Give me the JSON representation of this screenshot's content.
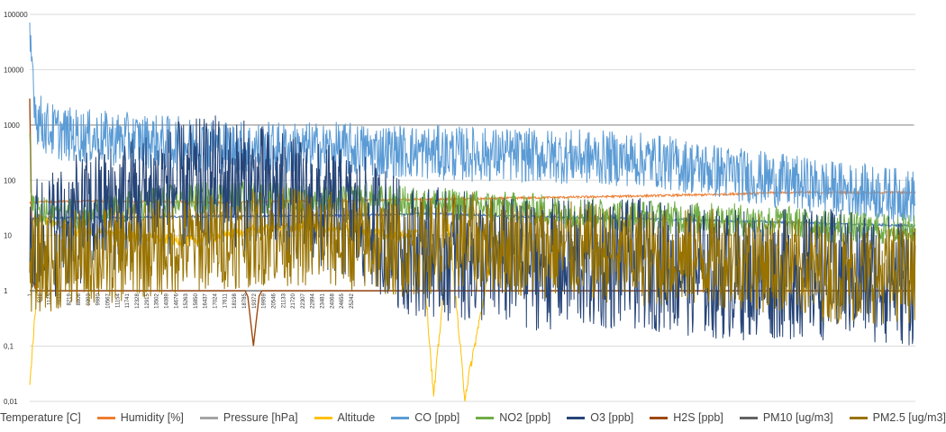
{
  "chart_data": {
    "type": "line",
    "title": "",
    "xlabel": "",
    "ylabel": "",
    "y_scale": "log",
    "ylim": [
      0.01,
      100000
    ],
    "y_ticks": [
      "100000",
      "10000",
      "1000",
      "100",
      "10",
      "1",
      "0,1",
      "0,01"
    ],
    "xlim": [
      1,
      28500
    ],
    "x_tick_labels": [
      "1",
      "588",
      "1175",
      "7632",
      "8219",
      "8806",
      "9393",
      "9980",
      "10567",
      "11154",
      "11741",
      "12328",
      "12915",
      "13502",
      "14089",
      "14676",
      "15263",
      "15850",
      "16437",
      "17024",
      "17611",
      "18198",
      "18785",
      "19372",
      "19959",
      "20546",
      "21133",
      "21720",
      "22307",
      "22894",
      "23481",
      "24068",
      "24655",
      "25242"
    ],
    "grid": "horizontal",
    "legend_position": "bottom",
    "series": [
      {
        "name": "Temperature [C]",
        "color": "#4472C4",
        "x": [
          1,
          100,
          400,
          2000,
          5000,
          10000,
          13000,
          14000,
          16000,
          20000,
          25000,
          28500
        ],
        "y": [
          20,
          20,
          21,
          21,
          22,
          23,
          25,
          24,
          22,
          20,
          17,
          15
        ]
      },
      {
        "name": "Humidity [%]",
        "color": "#ED7D31",
        "x": [
          1,
          300,
          2000,
          6000,
          10000,
          14000,
          18000,
          22000,
          24000,
          28500
        ],
        "y": [
          40,
          41,
          42,
          40,
          43,
          46,
          50,
          55,
          60,
          60
        ]
      },
      {
        "name": "Pressure [hPa]",
        "color": "#A5A5A5",
        "x": [
          1,
          28500
        ],
        "y": [
          1000,
          1000
        ]
      },
      {
        "name": "Altitude",
        "color": "#FFC000",
        "x": [
          1,
          400,
          1500,
          3000,
          5000,
          7000,
          9000,
          11000,
          11800,
          12600,
          13000,
          13500,
          14000,
          15000
        ],
        "y": [
          0.02,
          20,
          12,
          10,
          8,
          12,
          15,
          12,
          10,
          12,
          0.012,
          14,
          0.012,
          10
        ]
      },
      {
        "name": "CO [ppb]",
        "color": "#5B9BD5",
        "x": [
          1,
          80,
          200,
          500,
          1000,
          2000,
          3000,
          4000,
          5000,
          6000,
          7000,
          8000,
          10000,
          12000,
          14000,
          16000,
          18000,
          20000,
          22000,
          24000,
          26000,
          28500
        ],
        "y": [
          25000,
          14000,
          1500,
          900,
          700,
          600,
          550,
          500,
          450,
          400,
          380,
          370,
          360,
          330,
          300,
          280,
          260,
          230,
          150,
          100,
          70,
          50
        ]
      },
      {
        "name": "NO2 [ppb]",
        "color": "#70AD47",
        "x": [
          1,
          60,
          300,
          2000,
          4000,
          6000,
          8000,
          10000,
          12000,
          14000,
          16000,
          18000,
          20000,
          22000,
          24000,
          26000,
          28500
        ],
        "y": [
          600,
          30,
          25,
          25,
          40,
          50,
          48,
          45,
          40,
          35,
          30,
          25,
          22,
          20,
          18,
          14,
          12
        ]
      },
      {
        "name": "O3 [ppb]",
        "color": "#264478",
        "x": [
          1,
          500,
          2000,
          4000,
          6000,
          7000,
          8000,
          10000,
          11500,
          12000,
          14000,
          16000,
          18000,
          20000,
          22000,
          24000,
          26000,
          28500
        ],
        "y": [
          8,
          10,
          25,
          60,
          100,
          80,
          50,
          25,
          12,
          6,
          4,
          3,
          3,
          3,
          2,
          2,
          2,
          1.5
        ]
      },
      {
        "name": "H2S [ppb]",
        "color": "#9E480E",
        "x": [
          1,
          50,
          200,
          7000,
          7200,
          7400,
          28500
        ],
        "y": [
          3000,
          2,
          1,
          1,
          0.1,
          1,
          1
        ]
      },
      {
        "name": "PM10 [ug/m3]",
        "color": "#636363",
        "x": [
          1,
          28500
        ],
        "y": [
          1,
          1
        ]
      },
      {
        "name": "PM2.5 [ug/m3]",
        "color": "#997300",
        "x": [
          1,
          2000,
          4000,
          6000,
          8000,
          10000,
          12000,
          14000,
          16000,
          18000,
          20000,
          22000,
          24000,
          26000,
          28500
        ],
        "y": [
          3,
          4,
          6,
          8,
          10,
          8,
          6,
          8,
          6,
          5,
          4,
          4,
          3,
          2,
          2
        ]
      }
    ]
  }
}
